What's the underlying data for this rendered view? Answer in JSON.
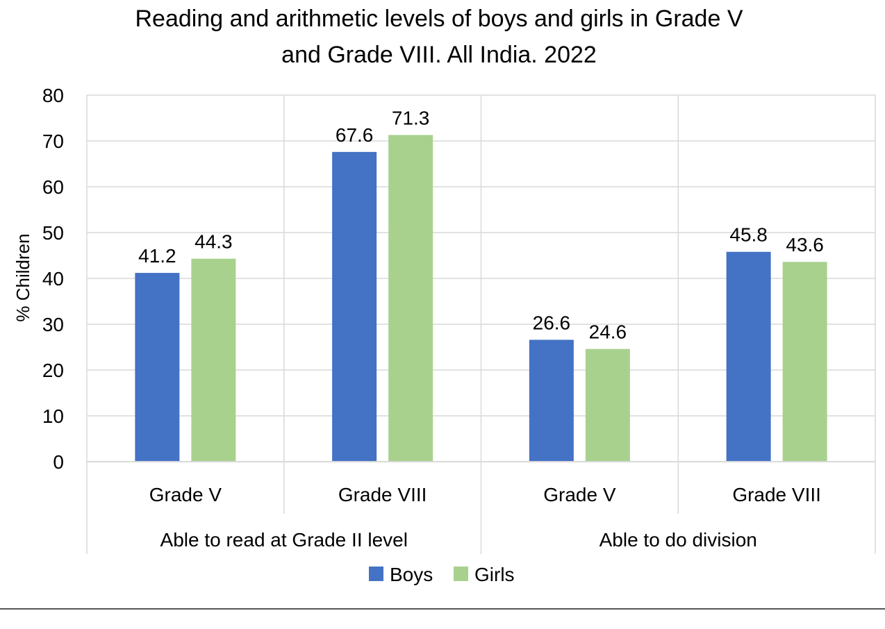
{
  "chart_data": {
    "type": "bar",
    "title_lines": [
      "Reading and arithmetic levels of boys and girls in Grade V",
      "and Grade VIII. All India. 2022"
    ],
    "ylabel": "% Children",
    "ylim": [
      0,
      80
    ],
    "yticks": [
      0,
      10,
      20,
      30,
      40,
      50,
      60,
      70,
      80
    ],
    "grid": true,
    "legend_position": "bottom",
    "groups": [
      {
        "label": "Able to read at Grade II level",
        "categories": [
          "Grade V",
          "Grade VIII"
        ]
      },
      {
        "label": "Able to do division",
        "categories": [
          "Grade V",
          "Grade VIII"
        ]
      }
    ],
    "categories": [
      "Grade V",
      "Grade VIII",
      "Grade V",
      "Grade VIII"
    ],
    "series": [
      {
        "name": "Boys",
        "color": "#4472C4",
        "values": [
          41.2,
          67.6,
          26.6,
          45.8
        ]
      },
      {
        "name": "Girls",
        "color": "#A9D18E",
        "values": [
          44.3,
          71.3,
          24.6,
          43.6
        ]
      }
    ]
  }
}
